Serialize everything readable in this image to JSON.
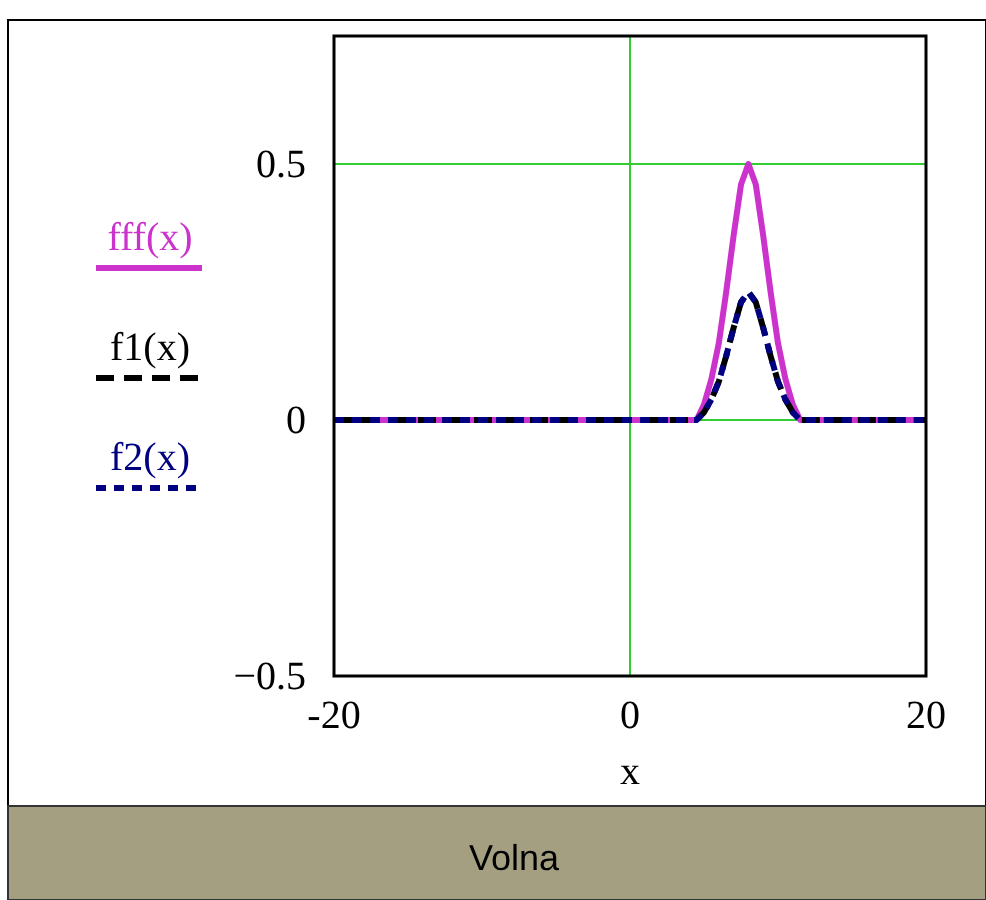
{
  "chart_data": {
    "type": "line",
    "xlabel": "x",
    "annotations": [
      "Volna"
    ],
    "x": [
      -20,
      4.5,
      5,
      5.5,
      6,
      6.5,
      7,
      7.5,
      8,
      8.5,
      9,
      9.5,
      10,
      10.5,
      11,
      11.5,
      20
    ],
    "xlim": [
      -20,
      20
    ],
    "xticks": [
      -20,
      0,
      20
    ],
    "ylim": [
      -0.5,
      0.75
    ],
    "yticks": [
      -0.5,
      0,
      0.5
    ],
    "grid": true,
    "legend": "left",
    "series": [
      {
        "name": "fff(x)",
        "color": "#cc33cc",
        "line_style": "solid",
        "values": [
          0,
          0,
          0.03,
          0.08,
          0.15,
          0.25,
          0.36,
          0.46,
          0.5,
          0.46,
          0.36,
          0.25,
          0.15,
          0.08,
          0.03,
          0,
          0
        ]
      },
      {
        "name": "f1(x)",
        "color": "#000000",
        "line_style": "dashed",
        "values": [
          0,
          0,
          0.015,
          0.04,
          0.075,
          0.125,
          0.18,
          0.23,
          0.25,
          0.23,
          0.18,
          0.125,
          0.075,
          0.04,
          0.015,
          0,
          0
        ]
      },
      {
        "name": "f2(x)",
        "color": "#000080",
        "line_style": "dotted",
        "values": [
          0,
          0,
          0.015,
          0.04,
          0.075,
          0.125,
          0.18,
          0.23,
          0.25,
          0.23,
          0.18,
          0.125,
          0.075,
          0.04,
          0.015,
          0,
          0
        ]
      }
    ]
  }
}
